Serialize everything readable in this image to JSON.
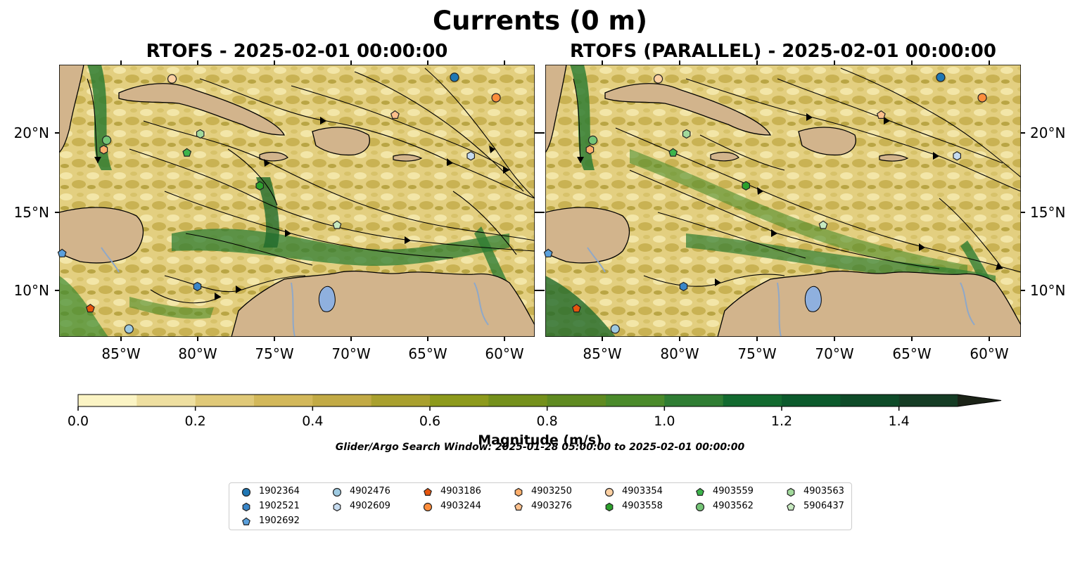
{
  "main_title": "Currents (0 m)",
  "panels": [
    {
      "title": "RTOFS - 2025-02-01 00:00:00"
    },
    {
      "title": "RTOFS (PARALLEL) - 2025-02-01 00:00:00"
    }
  ],
  "axes": {
    "lat_ticks": [
      "20°N",
      "15°N",
      "10°N"
    ],
    "lon_ticks": [
      "85°W",
      "80°W",
      "75°W",
      "70°W",
      "65°W",
      "60°W"
    ]
  },
  "colorbar": {
    "label": "Magnitude (m/s)",
    "ticks": [
      "0.0",
      "0.2",
      "0.4",
      "0.6",
      "0.8",
      "1.0",
      "1.2",
      "1.4"
    ],
    "colors": [
      "#fbf4c4",
      "#eedfa0",
      "#e0c978",
      "#d3b85a",
      "#c2aa45",
      "#a9a02e",
      "#8d9a1c",
      "#74901b",
      "#5f8a20",
      "#4a8a2a",
      "#2f7d33",
      "#126a2f",
      "#0b5a2c",
      "#0e4b28",
      "#153c24",
      "#1a2e1c",
      "#1b2317"
    ]
  },
  "search_window": "Glider/Argo Search Window: 2025-01-28 05:00:00 to 2025-02-01 00:00:00",
  "floats": [
    {
      "id": "1902364",
      "color": "#1f77b4",
      "marker": "circle"
    },
    {
      "id": "1902521",
      "color": "#3a86c8",
      "marker": "hexagon"
    },
    {
      "id": "1902692",
      "color": "#5aa0dc",
      "marker": "pentagon"
    },
    {
      "id": "4902476",
      "color": "#9ecae1",
      "marker": "circle"
    },
    {
      "id": "4902609",
      "color": "#c6dbef",
      "marker": "hexagon"
    },
    {
      "id": "4903186",
      "color": "#e6550d",
      "marker": "pentagon"
    },
    {
      "id": "4903244",
      "color": "#fd8d3c",
      "marker": "circle"
    },
    {
      "id": "4903250",
      "color": "#fdae6b",
      "marker": "hexagon"
    },
    {
      "id": "4903276",
      "color": "#fdc08c",
      "marker": "pentagon"
    },
    {
      "id": "4903354",
      "color": "#fdd0a2",
      "marker": "circle"
    },
    {
      "id": "4903558",
      "color": "#2ca02c",
      "marker": "hexagon"
    },
    {
      "id": "4903559",
      "color": "#3cb44b",
      "marker": "pentagon"
    },
    {
      "id": "4903562",
      "color": "#74c476",
      "marker": "circle"
    },
    {
      "id": "4903563",
      "color": "#a1d99b",
      "marker": "hexagon"
    },
    {
      "id": "5906437",
      "color": "#c7e9c0",
      "marker": "pentagon"
    }
  ],
  "float_positions": [
    {
      "id": "1902364",
      "lon": -63.4,
      "lat": 23.5
    },
    {
      "id": "1902521",
      "lon": -80.7,
      "lat": 10.2
    },
    {
      "id": "1902692",
      "lon": -89.8,
      "lat": 12.3
    },
    {
      "id": "4902476",
      "lon": -85.3,
      "lat": 7.5
    },
    {
      "id": "4902609",
      "lon": -62.3,
      "lat": 18.5
    },
    {
      "id": "4903186",
      "lon": -87.9,
      "lat": 8.8
    },
    {
      "id": "4903244",
      "lon": -60.6,
      "lat": 22.2
    },
    {
      "id": "4903250",
      "lon": -87.0,
      "lat": 18.9
    },
    {
      "id": "4903276",
      "lon": -67.4,
      "lat": 21.1
    },
    {
      "id": "4903354",
      "lon": -82.4,
      "lat": 23.4
    },
    {
      "id": "4903558",
      "lon": -76.5,
      "lat": 16.6
    },
    {
      "id": "4903559",
      "lon": -81.4,
      "lat": 18.7
    },
    {
      "id": "4903562",
      "lon": -86.8,
      "lat": 19.5
    },
    {
      "id": "4903563",
      "lon": -80.5,
      "lat": 19.9
    },
    {
      "id": "5906437",
      "lon": -71.3,
      "lat": 14.1
    }
  ]
}
